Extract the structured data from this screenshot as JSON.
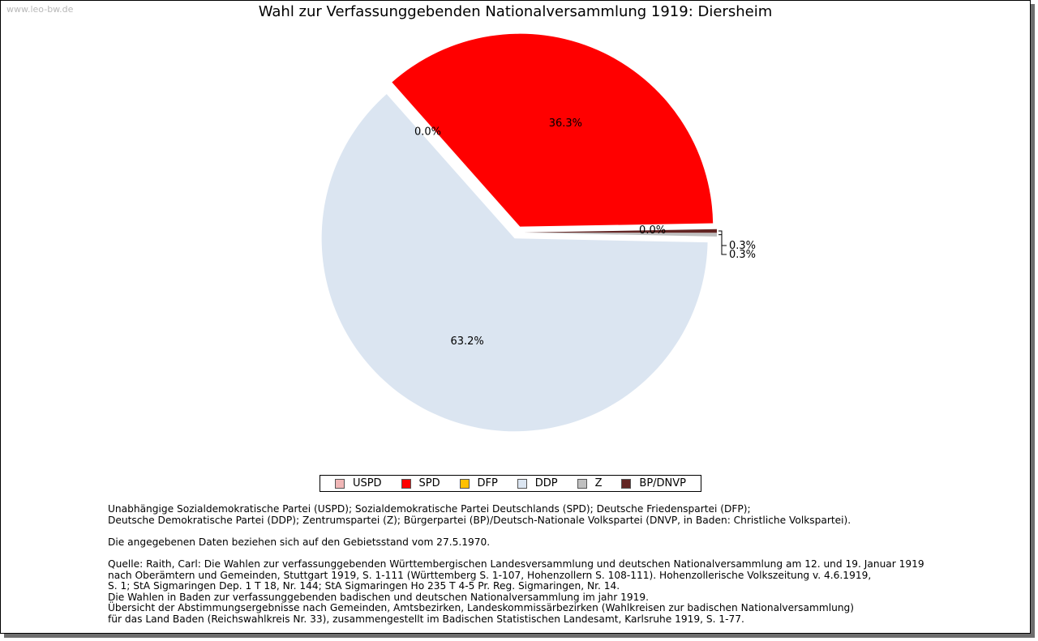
{
  "watermark": "www.leo-bw.de",
  "chart_data": {
    "type": "pie",
    "title": "Wahl zur Verfassunggebenden Nationalversammlung 1919: Diersheim",
    "legend_position": "bottom",
    "slices": [
      {
        "name": "USPD",
        "value": 0.0,
        "label": "0.0%",
        "color": "#f0b6b6"
      },
      {
        "name": "SPD",
        "value": 36.3,
        "label": "36.3%",
        "color": "#ff0000"
      },
      {
        "name": "DFP",
        "value": 0.0,
        "label": "0.0%",
        "color": "#ffc000"
      },
      {
        "name": "DDP",
        "value": 63.2,
        "label": "63.2%",
        "color": "#dbe5f1"
      },
      {
        "name": "Z",
        "value": 0.3,
        "label": "0.3%",
        "color": "#bfbfbf"
      },
      {
        "name": "BP/DNVP",
        "value": 0.3,
        "label": "0.3%",
        "color": "#632523"
      }
    ]
  },
  "notes": {
    "line1": "Unabhängige Sozialdemokratische Partei (USPD); Sozialdemokratische Partei Deutschlands (SPD); Deutsche Friedenspartei (DFP);",
    "line2": "Deutsche Demokratische Partei (DDP); Zentrumspartei (Z); Bürgerpartei (BP)/Deutsch-Nationale Volkspartei (DNVP, in Baden: Christliche Volkspartei).",
    "line3": "Die angegebenen Daten beziehen sich auf den Gebietsstand vom 27.5.1970.",
    "line4": "Quelle: Raith, Carl: Die Wahlen zur verfassunggebenden Württembergischen Landesversammlung und deutschen Nationalversammlung am 12. und 19. Januar 1919",
    "line5": "nach Oberämtern und Gemeinden, Stuttgart 1919, S. 1-111 (Württemberg S. 1-107, Hohenzollern S. 108-111). Hohenzollerische Volkszeitung v. 4.6.1919,",
    "line6": "S. 1; StA Sigmaringen Dep. 1 T 18, Nr. 144; StA Sigmaringen Ho 235 T 4-5 Pr. Reg. Sigmaringen, Nr. 14.",
    "line7": "Die Wahlen in Baden zur verfassunggebenden badischen und deutschen Nationalversammlung im jahr 1919.",
    "line8": "Übersicht der Abstimmungsergebnisse nach Gemeinden, Amtsbezirken, Landeskommissärbezirken (Wahlkreisen zur badischen Nationalversammlung)",
    "line9": "für das Land Baden (Reichswahlkreis Nr. 33), zusammengestellt im Badischen Statistischen Landesamt, Karlsruhe 1919, S. 1-77."
  }
}
